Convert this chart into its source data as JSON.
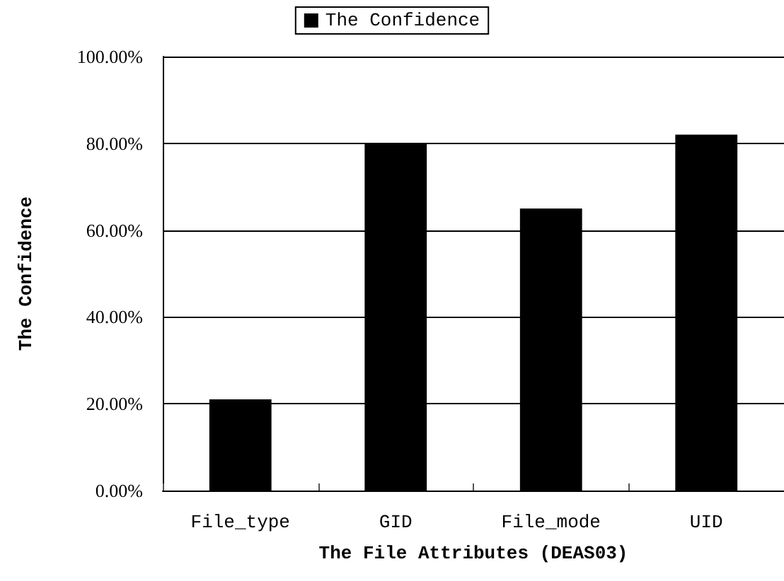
{
  "chart_data": {
    "type": "bar",
    "xlabel": "The File Attributes (DEAS03)",
    "ylabel": "The Confidence",
    "categories": [
      "File_type",
      "GID",
      "File_mode",
      "UID"
    ],
    "series": [
      {
        "name": "The Confidence",
        "color": "#000000",
        "values": [
          21,
          80,
          65,
          82
        ]
      }
    ],
    "ylim": [
      0,
      100
    ],
    "yticks": [
      {
        "value": 0,
        "label": "0.00%"
      },
      {
        "value": 20,
        "label": "20.00%"
      },
      {
        "value": 40,
        "label": "40.00%"
      },
      {
        "value": 60,
        "label": "60.00%"
      },
      {
        "value": 80,
        "label": "80.00%"
      },
      {
        "value": 100,
        "label": "100.00%"
      }
    ],
    "grid": "y",
    "legend": "top"
  }
}
